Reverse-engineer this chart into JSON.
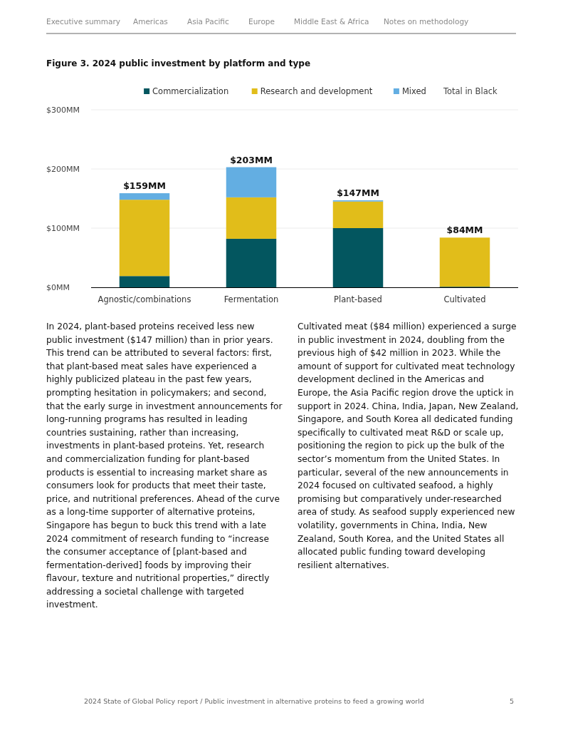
{
  "chart_data": {
    "type": "bar",
    "stacked": true,
    "title": "Figure 3. 2024 public investment by platform and type",
    "legend_title": "Total in Black",
    "categories": [
      "Agnostic/combinations",
      "Fermentation",
      "Plant-based",
      "Cultivated"
    ],
    "series": [
      {
        "name": "Commercialization",
        "color": "#03565f",
        "values": [
          19,
          82,
          100,
          1
        ]
      },
      {
        "name": "Research and development",
        "color": "#e1bd1a",
        "values": [
          129,
          70,
          45,
          83
        ]
      },
      {
        "name": "Mixed",
        "color": "#63aee2",
        "values": [
          11,
          51,
          2,
          0
        ]
      }
    ],
    "totals": [
      "$159MM",
      "$203MM",
      "$147MM",
      "$84MM"
    ],
    "ylim": [
      0,
      300
    ],
    "yticks": [
      {
        "value": 0,
        "label": "$0MM"
      },
      {
        "value": 100,
        "label": "$100MM"
      },
      {
        "value": 200,
        "label": "$200MM"
      },
      {
        "value": 300,
        "label": "$300MM"
      }
    ],
    "grid": "y",
    "legend": "top",
    "annotations": [
      "Executive summary",
      "Americas",
      "Asia Pacific",
      "Europe",
      "Middle East & Africa",
      "Notes on methodology",
      "In 2024, plant-based proteins received less new public investment ($147 million) than in prior years. This trend can be attributed to several factors: first, that plant-based meat sales have experienced a highly publicized plateau in the past few years, prompting hesitation in policymakers; and second, that the early surge in investment announcements for long-running programs has resulted in leading countries sustaining, rather than increasing, investments in plant-based proteins. Yet, research and commercialization funding for plant-based products is essential to increasing market share as consumers look for products that meet their taste, price, and nutritional preferences. Ahead of the curve as a long-time supporter of alternative proteins, Singapore has begun to buck this trend with a late 2024 commitment of research funding to “increase the consumer acceptance of [plant-based and fermentation-derived] foods by improving their flavour, texture and nutritional properties,” directly addressing a societal challenge with targeted investment.",
      "Cultivated meat ($84 million) experienced a surge in public investment in 2024, doubling from the previous high of $42 million in 2023. While the amount of support for cultivated meat technology development declined in the Americas and Europe, the Asia Pacific region drove the uptick in support in 2024. China, India, Japan, New Zealand, Singapore, and South Korea all dedicated funding specifically to cultivated meat R&D or scale up, positioning the region to pick up the bulk of the sector’s momentum from the United States. In particular, several of the new announcements in 2024 focused on cultivated seafood, a highly promising but comparatively under-researched area of study. As seafood supply experienced new volatility, governments in China, India, New Zealand, South Korea, and the United States all allocated public funding toward developing resilient alternatives.",
      "2024 State of Global Policy report  /  Public investment in alternative proteins to feed a growing world",
      "5"
    ]
  }
}
